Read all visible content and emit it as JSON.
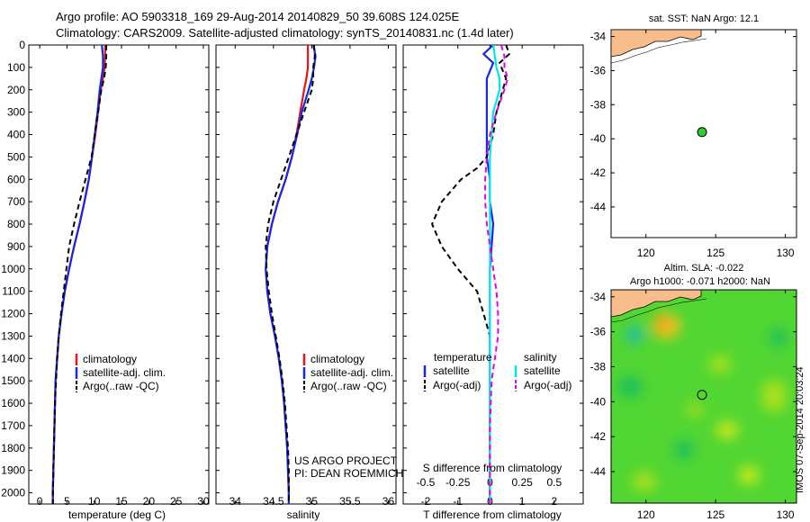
{
  "header": {
    "line1": "Argo profile: AO 5903318_169 29-Aug-2014 20140829_50 39.608S 124.025E",
    "line2": "Climatology: CARS2009. Satellite-adjusted climatology: synTS_20140831.nc (1.4d later)"
  },
  "credits": {
    "project": "US ARGO PROJECT",
    "pi": "PI: DEAN ROEMMICH",
    "stamp": "IMOS 07-Sep-2014 20:03:24"
  },
  "colors": {
    "climatology": "#e8141c",
    "satellite": "#1428e6",
    "argo": "#000000",
    "sal_satellite": "#00e5f0",
    "sal_argo": "#e600e6",
    "land": "#f9bd8c",
    "argo_marker": "#2ecc2e"
  },
  "chart_data": [
    {
      "type": "line",
      "name": "temperature-panel",
      "xlabel": "temperature (deg C)",
      "xlim": [
        -2,
        31
      ],
      "ylim": [
        2050,
        0
      ],
      "xticks": [
        0,
        5,
        10,
        15,
        20,
        25,
        30
      ],
      "yticks": [
        0,
        100,
        200,
        300,
        400,
        500,
        600,
        700,
        800,
        900,
        1000,
        1100,
        1200,
        1300,
        1400,
        1500,
        1600,
        1700,
        1800,
        1900,
        2000
      ],
      "y_reversed": true,
      "legend": [
        "climatology",
        "satellite-adj. clim.",
        "Argo(..raw -QC)"
      ],
      "series": [
        {
          "name": "climatology",
          "style": "solid",
          "color_key": "climatology",
          "depth": [
            0,
            50,
            100,
            150,
            200,
            300,
            400,
            500,
            600,
            700,
            800,
            900,
            1000,
            1100,
            1200,
            1300,
            1400,
            1500,
            1600,
            1700,
            1800,
            1900,
            2000,
            2050
          ],
          "values": [
            12.0,
            12.0,
            11.9,
            11.6,
            11.2,
            10.7,
            10.2,
            9.6,
            9.0,
            8.2,
            7.3,
            6.3,
            5.4,
            4.6,
            4.0,
            3.5,
            3.2,
            2.9,
            2.8,
            2.7,
            2.6,
            2.5,
            2.4,
            2.4
          ]
        },
        {
          "name": "satellite-adj. clim.",
          "style": "solid",
          "color_key": "satellite",
          "depth": [
            0,
            50,
            100,
            150,
            200,
            300,
            400,
            500,
            600,
            700,
            800,
            900,
            1000,
            1100,
            1200,
            1300,
            1400,
            1500,
            1600,
            1700,
            1800,
            1900,
            2000,
            2050
          ],
          "values": [
            11.4,
            11.6,
            11.6,
            11.3,
            11.0,
            10.6,
            10.1,
            9.6,
            9.0,
            8.2,
            7.3,
            6.3,
            5.4,
            4.6,
            4.0,
            3.5,
            3.2,
            2.9,
            2.8,
            2.7,
            2.6,
            2.5,
            2.4,
            2.4
          ]
        },
        {
          "name": "Argo(..raw -QC)",
          "style": "dashed",
          "color_key": "argo",
          "depth": [
            0,
            50,
            100,
            150,
            200,
            300,
            400,
            500,
            600,
            700,
            800,
            900,
            1000,
            1100,
            1200,
            1300,
            1400,
            1500,
            1600,
            1700,
            1800,
            1900,
            2000,
            2050
          ],
          "values": [
            12.2,
            12.2,
            12.1,
            11.8,
            11.3,
            10.7,
            10.1,
            9.5,
            8.4,
            7.3,
            6.3,
            5.4,
            4.9,
            4.4,
            3.9,
            3.5,
            3.2,
            3.0,
            2.8,
            2.7,
            2.6,
            2.5,
            2.4,
            2.4
          ]
        }
      ]
    },
    {
      "type": "line",
      "name": "salinity-panel",
      "xlabel": "salinity",
      "xlim": [
        33.75,
        36.1
      ],
      "ylim": [
        2050,
        0
      ],
      "xticks": [
        34,
        34.5,
        35,
        35.5,
        36
      ],
      "xtick_labels": [
        "34",
        "34.5",
        "35",
        "35.5",
        "36"
      ],
      "y_reversed": true,
      "legend": [
        "climatology",
        "satellite-adj. clim.",
        "Argo(..raw -QC)"
      ],
      "series": [
        {
          "name": "climatology",
          "style": "solid",
          "color_key": "climatology",
          "depth": [
            0,
            50,
            100,
            150,
            200,
            300,
            400,
            500,
            600,
            700,
            800,
            900,
            1000,
            1100,
            1200,
            1300,
            1400,
            1500,
            1600,
            1700,
            1800,
            1900,
            2000,
            2050
          ],
          "values": [
            34.95,
            34.95,
            34.95,
            34.93,
            34.9,
            34.85,
            34.8,
            34.74,
            34.66,
            34.56,
            34.48,
            34.42,
            34.4,
            34.42,
            34.46,
            34.52,
            34.57,
            34.61,
            34.64,
            34.66,
            34.68,
            34.69,
            34.7,
            34.7
          ]
        },
        {
          "name": "satellite-adj. clim.",
          "style": "solid",
          "color_key": "satellite",
          "depth": [
            0,
            50,
            100,
            150,
            200,
            300,
            400,
            500,
            600,
            700,
            800,
            900,
            1000,
            1100,
            1200,
            1300,
            1400,
            1500,
            1600,
            1700,
            1800,
            1900,
            2000,
            2050
          ],
          "values": [
            35.02,
            35.05,
            35.03,
            35.0,
            34.96,
            34.87,
            34.81,
            34.74,
            34.66,
            34.56,
            34.48,
            34.42,
            34.4,
            34.42,
            34.46,
            34.52,
            34.57,
            34.61,
            34.64,
            34.66,
            34.68,
            34.69,
            34.7,
            34.7
          ]
        },
        {
          "name": "Argo(..raw -QC)",
          "style": "dashed",
          "color_key": "argo",
          "depth": [
            0,
            50,
            100,
            150,
            200,
            300,
            400,
            500,
            600,
            700,
            800,
            900,
            1000,
            1100,
            1200,
            1300,
            1400,
            1500,
            1600,
            1700,
            1800,
            1900,
            2000,
            2050
          ],
          "values": [
            35.03,
            35.04,
            35.02,
            35.02,
            35.0,
            34.9,
            34.8,
            34.7,
            34.6,
            34.5,
            34.43,
            34.4,
            34.41,
            34.44,
            34.48,
            34.53,
            34.58,
            34.62,
            34.65,
            34.67,
            34.69,
            34.7,
            34.7,
            34.7
          ]
        }
      ]
    },
    {
      "type": "line",
      "name": "difference-panel",
      "xlabel": "T difference from climatology",
      "top_xlabel": "S difference from climatology",
      "xlim": [
        -2.7,
        2.9
      ],
      "ylim": [
        2050,
        0
      ],
      "xticks": [
        -2,
        -1,
        0,
        1,
        2
      ],
      "top_xticks": [
        -2,
        -1,
        0,
        1,
        2
      ],
      "top_xtick_labels": [
        "-0.5",
        "-0.25",
        "0",
        "0.25",
        "0.5"
      ],
      "y_reversed": true,
      "legend_groups": [
        {
          "title": "temperature",
          "items": [
            "satellite",
            "Argo(-adj)"
          ]
        },
        {
          "title": "salinity",
          "items": [
            "satellite",
            "Argo(-adj)"
          ]
        }
      ],
      "series": [
        {
          "name": "satellite",
          "group": "temperature",
          "style": "solid",
          "color_key": "satellite",
          "depth": [
            0,
            40,
            80,
            150,
            200,
            300,
            400,
            500,
            600,
            700,
            800,
            900,
            1000,
            1200,
            1500,
            1800,
            2050
          ],
          "values": [
            0.1,
            -0.2,
            0.1,
            -0.1,
            -0.1,
            -0.1,
            -0.1,
            -0.1,
            0.0,
            0.0,
            0.1,
            0.05,
            0.0,
            0.0,
            0.0,
            0.0,
            0.0
          ]
        },
        {
          "name": "Argo(-adj)",
          "group": "temperature",
          "style": "dashed",
          "color_key": "argo",
          "depth": [
            0,
            40,
            80,
            150,
            200,
            300,
            400,
            500,
            550,
            600,
            700,
            800,
            900,
            1000,
            1100,
            1200,
            1300,
            1500,
            1800,
            2050
          ],
          "values": [
            0.5,
            0.6,
            0.3,
            0.5,
            0.4,
            0.2,
            0.1,
            -0.1,
            -0.4,
            -0.9,
            -1.5,
            -1.8,
            -1.5,
            -1.0,
            -0.4,
            -0.2,
            0.0,
            0.0,
            0.0,
            0.0
          ]
        },
        {
          "name": "satellite",
          "group": "salinity",
          "style": "solid",
          "color_key": "sal_satellite",
          "depth": [
            0,
            50,
            100,
            150,
            200,
            300,
            400,
            500,
            600,
            800,
            1000,
            1200,
            1500,
            1800,
            2050
          ],
          "values": [
            0.1,
            0.15,
            0.2,
            0.3,
            0.3,
            0.1,
            0.05,
            0.0,
            0.0,
            0.0,
            0.0,
            0.0,
            0.0,
            0.0,
            0.0
          ]
        },
        {
          "name": "Argo(-adj)",
          "group": "salinity",
          "style": "dashed",
          "color_key": "sal_argo",
          "depth": [
            0,
            50,
            100,
            150,
            200,
            300,
            400,
            500,
            600,
            700,
            800,
            900,
            1000,
            1100,
            1200,
            1300,
            1400,
            1500,
            1700,
            2050
          ],
          "values": [
            0.35,
            0.45,
            0.45,
            0.55,
            0.45,
            0.2,
            0.0,
            -0.1,
            -0.15,
            -0.15,
            -0.1,
            0.0,
            0.1,
            0.2,
            0.25,
            0.25,
            0.15,
            0.05,
            0.0,
            0.0
          ]
        }
      ]
    },
    {
      "type": "scatter",
      "name": "sst-map",
      "title": "sat. SST: NaN Argo: 12.1",
      "xlim": [
        117.5,
        130.8
      ],
      "ylim": [
        -45.8,
        -33.6
      ],
      "xticks": [
        120,
        125,
        130
      ],
      "yticks": [
        -34,
        -36,
        -38,
        -40,
        -42,
        -44
      ],
      "points": [
        {
          "lon": 124.025,
          "lat": -39.608
        }
      ]
    },
    {
      "type": "heatmap",
      "name": "sla-map",
      "title": "Altim. SLA: -0.022",
      "subtitle": "Argo h1000: -0.071 h2000: NaN",
      "xlim": [
        117.5,
        130.8
      ],
      "ylim": [
        -45.8,
        -33.6
      ],
      "xticks": [
        120,
        125,
        130
      ],
      "yticks": [
        -34,
        -36,
        -38,
        -40,
        -42,
        -44
      ],
      "points": [
        {
          "lon": 124.025,
          "lat": -39.608
        }
      ]
    }
  ]
}
